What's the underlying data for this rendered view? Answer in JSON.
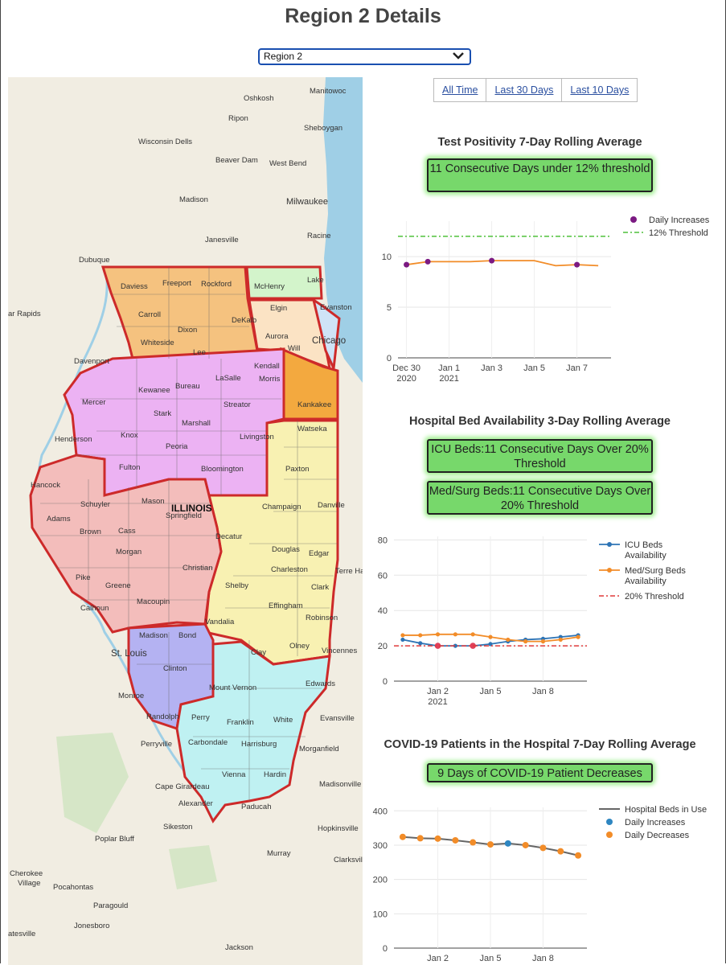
{
  "page": {
    "title": "Region 2 Details"
  },
  "region_select": {
    "value": "Region 2"
  },
  "time_buttons": [
    "All Time",
    "Last 30 Days",
    "Last 10 Days"
  ],
  "map": {
    "state_label": "ILLINOIS",
    "region_colors": {
      "region1": "#f5c27f",
      "region2": "#ecb2f3",
      "region3": "#f3bdbb",
      "region4": "#b4b2f2",
      "region5": "#bff1f2",
      "region6": "#f8f1b2",
      "region7": "#f3a93f",
      "region8": "#fbe3c4",
      "region9": "#d3f4cb",
      "region10": "#cfe3f7",
      "border": "#cd2a2a",
      "water": "#9fcfe6"
    },
    "places": [
      "Oshkosh",
      "Manitowoc",
      "Ripon",
      "Sheboygan",
      "Wisconsin Dells",
      "Beaver Dam",
      "West Bend",
      "Madison",
      "Milwaukee",
      "Janesville",
      "Racine",
      "Dubuque",
      "Daviess",
      "Freeport",
      "Rockford",
      "McHenry",
      "Lake",
      "Carroll",
      "Elgin",
      "Evanston",
      "Dixon",
      "DeKalb",
      "Whiteside",
      "Lee",
      "Aurora",
      "Chicago",
      "Davenport",
      "Kendall",
      "Will",
      "Morris",
      "LaSalle",
      "Bureau",
      "Kewanee",
      "Mercer",
      "Streator",
      "Kankakee",
      "Stark",
      "Marshall",
      "Henderson",
      "Knox",
      "Livingston",
      "Watseka",
      "Peoria",
      "Fulton",
      "Bloomington",
      "Hancock",
      "Paxton",
      "Schuyler",
      "Mason",
      "Champaign",
      "Danville",
      "Adams",
      "Brown",
      "Cass",
      "Springfield",
      "Decatur",
      "Morgan",
      "Douglas",
      "Edgar",
      "Pike",
      "Christian",
      "Charleston",
      "Terre Haute",
      "Greene",
      "Shelby",
      "Clark",
      "Macoupin",
      "Effingham",
      "Calhoun",
      "Vandalia",
      "Robinson",
      "Madison",
      "Bond",
      "Clay",
      "Olney",
      "Vincennes",
      "St. Louis",
      "Clinton",
      "Mount Vernon",
      "Edwards",
      "Monroe",
      "Randolph",
      "Perry",
      "Franklin",
      "White",
      "Evansville",
      "Perryville",
      "Carbondale",
      "Harrisburg",
      "Morganfield",
      "Vienna",
      "Hardin",
      "Madisonville",
      "Cape Girardeau",
      "Alexander",
      "Paducah",
      "Sikeston",
      "Hopkinsville",
      "Poplar Bluff",
      "Murray",
      "Clarksville",
      "Cherokee Village",
      "Pocahontas",
      "Paragould",
      "Jonesboro",
      "Jackson",
      "ar Rapids",
      "atesville"
    ]
  },
  "test_positivity": {
    "title": "Test Positivity 7-Day Rolling Average",
    "badge": "11 Consecutive Days under 12% threshold"
  },
  "hospital_beds": {
    "title": "Hospital Bed Availability 3-Day Rolling Average",
    "badge_icu": "ICU Beds:11 Consecutive Days Over 20% Threshold",
    "badge_medsurg": "Med/Surg Beds:11 Consecutive Days Over 20% Threshold"
  },
  "covid_patients": {
    "title": "COVID-19 Patients in the Hospital 7-Day Rolling Average",
    "badge": "9 Days of COVID-19 Patient Decreases"
  },
  "chart_data": [
    {
      "type": "line",
      "title": "",
      "xlabel": "",
      "ylabel": "",
      "x": [
        "2020-12-30",
        "2020-12-31",
        "2021-01-01",
        "2021-01-02",
        "2021-01-03",
        "2021-01-04",
        "2021-01-05",
        "2021-01-06",
        "2021-01-07",
        "2021-01-08"
      ],
      "xticks": [
        {
          "x": "2020-12-30",
          "label": "Dec 30",
          "sub": "2020"
        },
        {
          "x": "2021-01-01",
          "label": "Jan 1",
          "sub": "2021"
        },
        {
          "x": "2021-01-03",
          "label": "Jan 3",
          "sub": ""
        },
        {
          "x": "2021-01-05",
          "label": "Jan 5",
          "sub": ""
        },
        {
          "x": "2021-01-07",
          "label": "Jan 7",
          "sub": ""
        }
      ],
      "ylim": [
        0,
        13.5
      ],
      "yticks": [
        0,
        5,
        10
      ],
      "series": [
        {
          "name": "Daily Increases",
          "kind": "line+points",
          "color": "#f28c28",
          "point_color": "#7b1a82",
          "values": [
            9.2,
            9.5,
            9.5,
            9.5,
            9.6,
            9.6,
            9.6,
            9.1,
            9.2,
            9.1
          ],
          "increase_points": [
            "2020-12-30",
            "2020-12-31",
            "2021-01-03",
            "2021-01-07"
          ]
        },
        {
          "name": "12% Threshold",
          "kind": "threshold",
          "color": "#4fc13a",
          "value": 12
        }
      ],
      "legend": "top-right",
      "grid": true
    },
    {
      "type": "line",
      "title": "",
      "xlabel": "",
      "ylabel": "",
      "x": [
        "2020-12-31",
        "2021-01-01",
        "2021-01-02",
        "2021-01-03",
        "2021-01-04",
        "2021-01-05",
        "2021-01-06",
        "2021-01-07",
        "2021-01-08",
        "2021-01-09",
        "2021-01-10"
      ],
      "xticks": [
        {
          "x": "2021-01-02",
          "label": "Jan 2",
          "sub": "2021"
        },
        {
          "x": "2021-01-05",
          "label": "Jan 5",
          "sub": ""
        },
        {
          "x": "2021-01-08",
          "label": "Jan 8",
          "sub": ""
        }
      ],
      "ylim": [
        0,
        82
      ],
      "yticks": [
        0,
        20,
        40,
        60,
        80
      ],
      "series": [
        {
          "name": "ICU Beds Availability",
          "color": "#2e74b5",
          "values": [
            23.5,
            21.5,
            20.0,
            20.0,
            20.0,
            21.0,
            22.5,
            23.5,
            24.0,
            25.0,
            26.0
          ],
          "marker_colors": [
            "#2e74b5",
            "#2e74b5",
            "#e0405a",
            "#2e74b5",
            "#e0405a",
            "#2e74b5",
            "#2e74b5",
            "#2e74b5",
            "#2e74b5",
            "#2e74b5",
            "#2e74b5"
          ]
        },
        {
          "name": "Med/Surg Beds Availability",
          "color": "#f28c28",
          "values": [
            26.0,
            26.0,
            26.5,
            26.5,
            26.5,
            25.0,
            23.5,
            22.5,
            22.5,
            23.5,
            25.0
          ]
        },
        {
          "name": "20% Threshold",
          "kind": "threshold",
          "color": "#e03a3a",
          "value": 20
        }
      ],
      "legend": "top-right",
      "grid": true
    },
    {
      "type": "line",
      "title": "",
      "xlabel": "",
      "ylabel": "",
      "x": [
        "2020-12-31",
        "2021-01-01",
        "2021-01-02",
        "2021-01-03",
        "2021-01-04",
        "2021-01-05",
        "2021-01-06",
        "2021-01-07",
        "2021-01-08",
        "2021-01-09",
        "2021-01-10"
      ],
      "xticks": [
        {
          "x": "2021-01-02",
          "label": "Jan 2",
          "sub": "2021"
        },
        {
          "x": "2021-01-05",
          "label": "Jan 5",
          "sub": ""
        },
        {
          "x": "2021-01-08",
          "label": "Jan 8",
          "sub": ""
        }
      ],
      "ylim": [
        0,
        410
      ],
      "yticks": [
        0,
        100,
        200,
        300,
        400
      ],
      "series": [
        {
          "name": "Hospital Beds in Use",
          "color": "#666666",
          "values": [
            324,
            320,
            319,
            314,
            308,
            302,
            305,
            300,
            292,
            282,
            270
          ],
          "point_kinds": [
            "dec",
            "dec",
            "dec",
            "dec",
            "dec",
            "dec",
            "inc",
            "dec",
            "dec",
            "dec",
            "dec"
          ]
        },
        {
          "name": "Daily Increases",
          "kind": "legend-point",
          "color": "#2e86c1"
        },
        {
          "name": "Daily Decreases",
          "kind": "legend-point",
          "color": "#f28c28"
        }
      ],
      "legend": "top-right",
      "grid": true
    }
  ]
}
